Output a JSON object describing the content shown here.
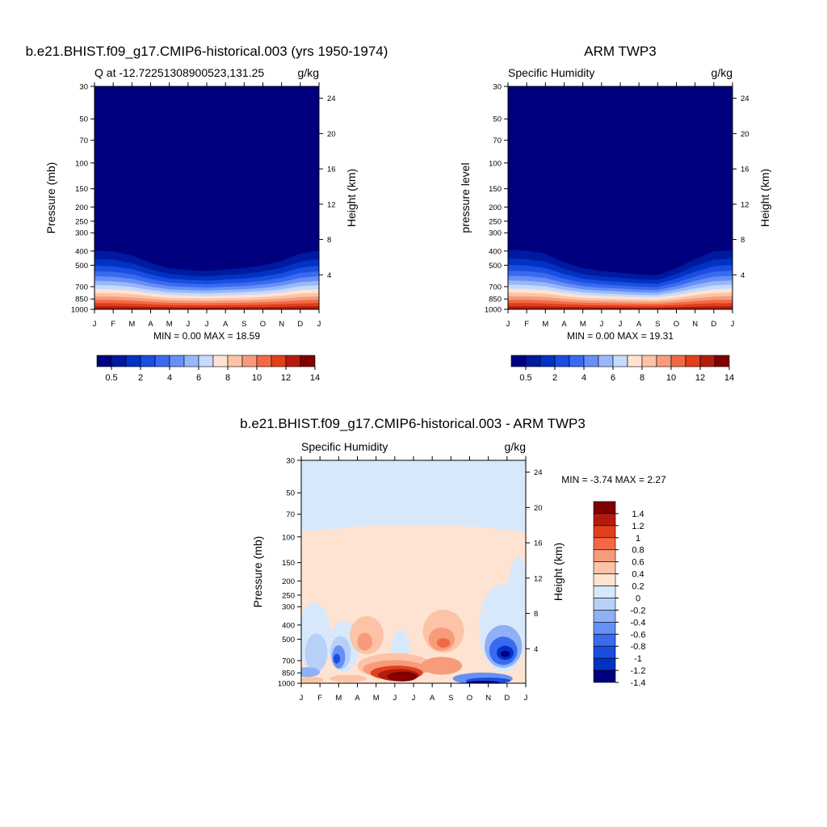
{
  "panels": [
    {
      "id": "model",
      "title": "b.e21.BHIST.f09_g17.CMIP6-historical.003 (yrs 1950-1974)",
      "left_label": "Q at -12.72251308900523,131.25",
      "right_label": "g/kg",
      "ylabel": "Pressure (mb)",
      "y2label": "Height (km)",
      "minmax": "MIN =   0.00 MAX =  18.59"
    },
    {
      "id": "obs",
      "title": "ARM TWP3",
      "left_label": "Specific Humidity",
      "right_label": "g/kg",
      "ylabel": "pressure level",
      "y2label": "Height (km)",
      "minmax": "MIN =   0.00 MAX =  19.31"
    },
    {
      "id": "diff",
      "title": "b.e21.BHIST.f09_g17.CMIP6-historical.003 - ARM TWP3",
      "left_label": "Specific Humidity",
      "right_label": "g/kg",
      "ylabel": "Pressure (mb)",
      "y2label": "Height (km)",
      "minmax": "MIN =  -3.74 MAX =   2.27"
    }
  ],
  "chart_data": [
    {
      "type": "heatmap",
      "title": "b.e21.BHIST.f09_g17.CMIP6-historical.003 (yrs 1950-1974)",
      "subtitle": "Q at -12.72251308900523,131.25",
      "units": "g/kg",
      "ylabel": "Pressure (mb)",
      "y2label": "Height (km)",
      "x_ticks": [
        "J",
        "F",
        "M",
        "A",
        "M",
        "J",
        "J",
        "A",
        "S",
        "O",
        "N",
        "D",
        "J"
      ],
      "y_ticks": [
        30,
        50,
        70,
        100,
        150,
        200,
        250,
        300,
        400,
        500,
        700,
        850,
        1000
      ],
      "y2_ticks": [
        4,
        8,
        12,
        16,
        20,
        24
      ],
      "y_scale": "log, reversed",
      "colorbar": {
        "levels": [
          0.5,
          1,
          2,
          3,
          4,
          5,
          6,
          7,
          8,
          9,
          10,
          11,
          12,
          13,
          14
        ],
        "tick_labels": [
          "0.5",
          "2",
          "4",
          "6",
          "8",
          "10",
          "12",
          "14"
        ],
        "colors": [
          "#00007f",
          "#0019a0",
          "#0033c4",
          "#1a4ee0",
          "#3a6af0",
          "#6690f6",
          "#9ab8f9",
          "#c5dafc",
          "#ffe3d2",
          "#fcc3a6",
          "#f79b7a",
          "#f26a45",
          "#e0401b",
          "#b31c0c",
          "#800000"
        ]
      },
      "max_depth_mb": [
        300,
        305,
        330,
        385,
        430,
        445,
        455,
        440,
        430,
        405,
        370,
        318,
        300
      ],
      "min": 0.0,
      "max": 18.59
    },
    {
      "type": "heatmap",
      "title": "ARM TWP3",
      "subtitle": "Specific Humidity",
      "units": "g/kg",
      "ylabel": "pressure level",
      "y2label": "Height (km)",
      "x_ticks": [
        "J",
        "F",
        "M",
        "A",
        "M",
        "J",
        "J",
        "A",
        "S",
        "O",
        "N",
        "D",
        "J"
      ],
      "y_ticks": [
        30,
        50,
        70,
        100,
        150,
        200,
        250,
        300,
        400,
        500,
        700,
        850,
        1000
      ],
      "y2_ticks": [
        4,
        8,
        12,
        16,
        20,
        24
      ],
      "y_scale": "log, reversed",
      "colorbar": {
        "levels": [
          0.5,
          1,
          2,
          3,
          4,
          5,
          6,
          7,
          8,
          9,
          10,
          11,
          12,
          13,
          14
        ],
        "tick_labels": [
          "0.5",
          "2",
          "4",
          "6",
          "8",
          "10",
          "12",
          "14"
        ],
        "colors": [
          "#00007f",
          "#0019a0",
          "#0033c4",
          "#1a4ee0",
          "#3a6af0",
          "#6690f6",
          "#9ab8f9",
          "#c5dafc",
          "#ffe3d2",
          "#fcc3a6",
          "#f79b7a",
          "#f26a45",
          "#e0401b",
          "#b31c0c",
          "#800000"
        ]
      },
      "max_depth_mb": [
        295,
        300,
        320,
        380,
        430,
        455,
        470,
        490,
        495,
        430,
        355,
        305,
        295
      ],
      "min": 0.0,
      "max": 19.31
    },
    {
      "type": "heatmap",
      "title": "b.e21.BHIST.f09_g17.CMIP6-historical.003 - ARM TWP3",
      "subtitle": "Specific Humidity",
      "units": "g/kg",
      "ylabel": "Pressure (mb)",
      "y2label": "Height (km)",
      "x_ticks": [
        "J",
        "F",
        "M",
        "A",
        "M",
        "J",
        "J",
        "A",
        "S",
        "O",
        "N",
        "D",
        "J"
      ],
      "y_ticks": [
        30,
        50,
        70,
        100,
        150,
        200,
        250,
        300,
        400,
        500,
        700,
        850,
        1000
      ],
      "y2_ticks": [
        4,
        8,
        12,
        16,
        20,
        24
      ],
      "y_scale": "log, reversed",
      "colorbar": {
        "levels": [
          -1.4,
          -1.2,
          -1,
          -0.8,
          -0.6,
          -0.4,
          -0.2,
          0,
          0.2,
          0.4,
          0.6,
          0.8,
          1,
          1.2,
          1.4
        ],
        "tick_labels": [
          "1.4",
          "1.2",
          "1",
          "0.8",
          "0.6",
          "0.4",
          "0.2",
          "0",
          "-0.2",
          "-0.4",
          "-0.6",
          "-0.8",
          "-1",
          "-1.2",
          "-1.4"
        ],
        "colors": [
          "#800000",
          "#b31c0c",
          "#e0401b",
          "#f26a45",
          "#f79b7a",
          "#fcc3a6",
          "#ffe3d2",
          "#d8e8fb",
          "#b7d0f8",
          "#8fb0f4",
          "#6690f6",
          "#3a6af0",
          "#1a4ee0",
          "#0033c4",
          "#00007f"
        ]
      },
      "min": -3.74,
      "max": 2.27
    }
  ]
}
